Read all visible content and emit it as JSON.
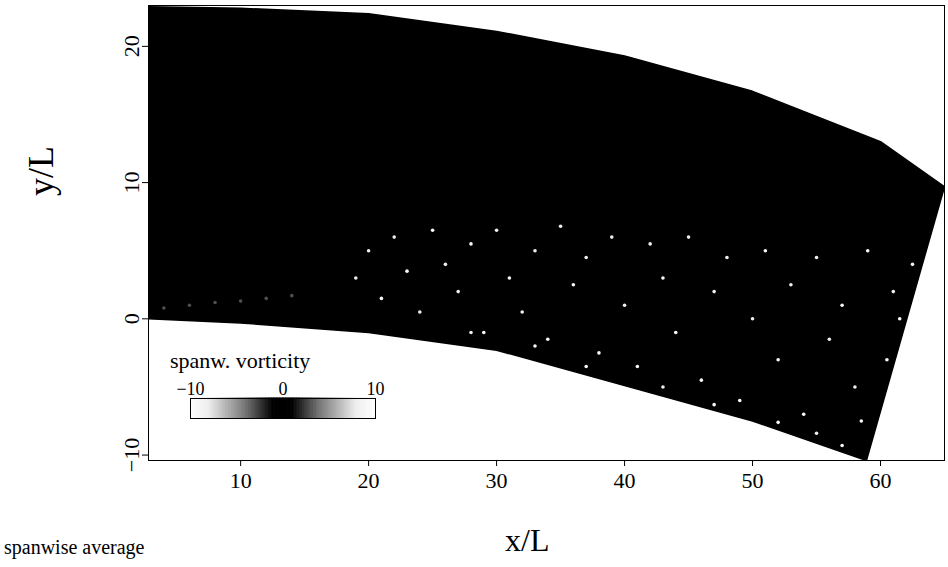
{
  "chart_data": {
    "type": "field",
    "x_label": "x/L",
    "y_label": "y/L",
    "caption": "spanwise average",
    "xlim": [
      2.8,
      65
    ],
    "ylim": [
      -10.4,
      23
    ],
    "xticks": [
      10,
      20,
      30,
      40,
      50,
      60
    ],
    "yticks": [
      -10,
      0,
      10,
      20
    ],
    "domain_outline": {
      "x": [
        2.8,
        10,
        20,
        30,
        40,
        50,
        60,
        65,
        58.9,
        50,
        40,
        30,
        20,
        10,
        2.8
      ],
      "y": [
        22.9,
        22.8,
        22.4,
        21.1,
        19.3,
        16.7,
        13.0,
        9.7,
        -10.4,
        -7.5,
        -4.9,
        -2.3,
        -1.0,
        -0.3,
        0
      ]
    },
    "vorticity": {
      "x": [
        4,
        6,
        8,
        10,
        12,
        14,
        19,
        20,
        21,
        22,
        23,
        24,
        25,
        26,
        27,
        28,
        29,
        30,
        31,
        32,
        33,
        34,
        35,
        36,
        37,
        38,
        39,
        40,
        41,
        42,
        43,
        44,
        45,
        46,
        47,
        48,
        49,
        50,
        51,
        52,
        53,
        54,
        55,
        56,
        57,
        58,
        59,
        58.5,
        61,
        60.5,
        62.5,
        61.5,
        28,
        33,
        37,
        43,
        47,
        52,
        55,
        57
      ],
      "y": [
        0.8,
        1,
        1.2,
        1.3,
        1.5,
        1.7,
        3,
        5,
        1.5,
        6,
        3.5,
        0.5,
        6.5,
        4,
        2,
        5.5,
        -1,
        6.5,
        3,
        0.5,
        5,
        -1.5,
        6.8,
        2.5,
        4.5,
        -2.5,
        6,
        1,
        -3.5,
        5.5,
        3,
        -1,
        6,
        -4.5,
        2,
        4.5,
        -6,
        0,
        5,
        -3,
        2.5,
        -7,
        4.5,
        -1.5,
        1,
        -5,
        5,
        -7.5,
        2,
        -3,
        4,
        0,
        -1,
        -2,
        -3.5,
        -5,
        -6.3,
        -7.6,
        -8.4,
        -9.3
      ],
      "values": [
        -3,
        -3,
        -3,
        -3,
        -3,
        -3,
        8,
        -8,
        9,
        8,
        -9,
        8,
        9,
        -8,
        8,
        9,
        -9,
        8,
        9,
        -8,
        8,
        9,
        8,
        -9,
        8,
        9,
        8,
        -8,
        9,
        8,
        9,
        -9,
        8,
        9,
        8,
        -8,
        9,
        8,
        9,
        -9,
        8,
        9,
        8,
        -8,
        9,
        8,
        9,
        9,
        -8,
        9,
        8,
        9,
        8,
        9,
        -9,
        8,
        9,
        9,
        8,
        -9
      ]
    },
    "colorbar": {
      "label": "spanw. vorticity",
      "range": [
        -10,
        10
      ],
      "ticks": [
        -10,
        0,
        10
      ]
    }
  }
}
